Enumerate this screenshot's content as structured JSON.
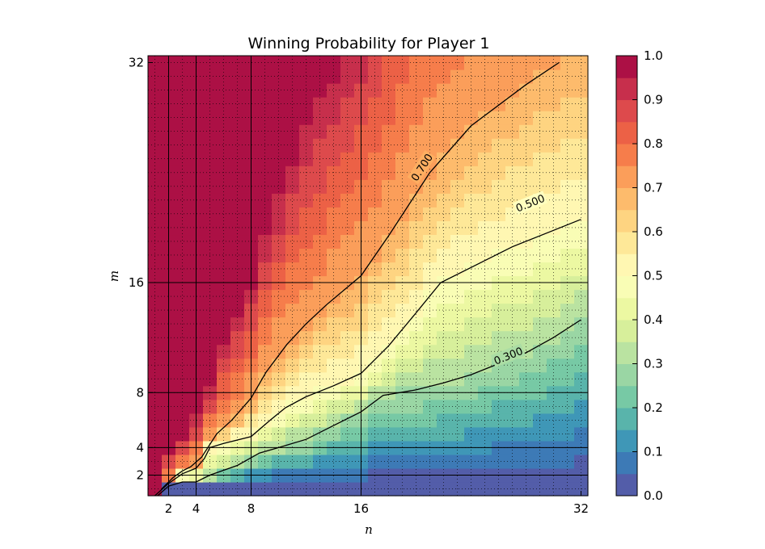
{
  "chart_data": {
    "type": "heatmap",
    "title": "Winning Probability for Player 1",
    "xlabel": "n",
    "ylabel": "m",
    "x_range": [
      1,
      32
    ],
    "y_range": [
      1,
      32
    ],
    "x_ticks": [
      {
        "value": 2,
        "label": "2"
      },
      {
        "value": 4,
        "label": "4"
      },
      {
        "value": 8,
        "label": "8"
      },
      {
        "value": 16,
        "label": "16"
      },
      {
        "value": 32,
        "label": "32"
      }
    ],
    "y_ticks": [
      {
        "value": 2,
        "label": "2"
      },
      {
        "value": 4,
        "label": "4"
      },
      {
        "value": 8,
        "label": "8"
      },
      {
        "value": 16,
        "label": "16"
      },
      {
        "value": 32,
        "label": "32"
      }
    ],
    "x_major_lines": [
      2,
      4,
      8,
      16
    ],
    "y_major_lines": [
      2,
      4,
      8,
      16
    ],
    "minor_grid": "dotted, every integer",
    "colormap": "Spectral",
    "colormap_colors": [
      "#5e4fa2",
      "#3288bd",
      "#66c2a5",
      "#abdda4",
      "#e6f598",
      "#ffffbf",
      "#fee08b",
      "#fdae61",
      "#f46d43",
      "#d53e4f",
      "#9e0142"
    ],
    "colorbar": {
      "range": [
        0.0,
        1.0
      ],
      "levels": 20,
      "ticks": [
        {
          "value": 0.0,
          "label": "0.0"
        },
        {
          "value": 0.1,
          "label": "0.1"
        },
        {
          "value": 0.2,
          "label": "0.2"
        },
        {
          "value": 0.3,
          "label": "0.3"
        },
        {
          "value": 0.4,
          "label": "0.4"
        },
        {
          "value": 0.5,
          "label": "0.5"
        },
        {
          "value": 0.6,
          "label": "0.6"
        },
        {
          "value": 0.7,
          "label": "0.7"
        },
        {
          "value": 0.8,
          "label": "0.8"
        },
        {
          "value": 0.9,
          "label": "0.9"
        },
        {
          "value": 1.0,
          "label": "1.0"
        }
      ]
    },
    "contours": [
      {
        "level": 0.7,
        "label": "0.700",
        "label_at": {
          "n": 20.4,
          "m": 24.4
        },
        "points": [
          [
            1.5,
            1.0
          ],
          [
            2.3,
            1.8
          ],
          [
            3.0,
            2.3
          ],
          [
            3.6,
            2.6
          ],
          [
            4.4,
            3.3
          ],
          [
            5.5,
            5.0
          ],
          [
            6.6,
            6.0
          ],
          [
            8.0,
            7.6
          ],
          [
            9.1,
            9.5
          ],
          [
            10.6,
            11.5
          ],
          [
            12.0,
            13.0
          ],
          [
            13.5,
            14.4
          ],
          [
            16.0,
            16.5
          ],
          [
            18.0,
            19.4
          ],
          [
            21.0,
            24.0
          ],
          [
            24.0,
            27.4
          ],
          [
            28.0,
            30.4
          ],
          [
            30.4,
            32.0
          ]
        ]
      },
      {
        "level": 0.5,
        "label": "0.500",
        "label_at": {
          "n": 28.3,
          "m": 21.8
        },
        "points": [
          [
            1.0,
            0.5
          ],
          [
            2.0,
            1.4
          ],
          [
            3.0,
            2.1
          ],
          [
            4.0,
            2.5
          ],
          [
            4.6,
            3.2
          ],
          [
            5.0,
            4.0
          ],
          [
            6.0,
            4.3
          ],
          [
            8.0,
            4.8
          ],
          [
            9.4,
            6.0
          ],
          [
            10.5,
            6.9
          ],
          [
            12.0,
            7.7
          ],
          [
            14.0,
            8.5
          ],
          [
            16.0,
            9.4
          ],
          [
            18.0,
            11.4
          ],
          [
            20.0,
            13.8
          ],
          [
            21.8,
            16.0
          ],
          [
            24.0,
            17.1
          ],
          [
            27.0,
            18.6
          ],
          [
            30.0,
            19.8
          ],
          [
            32.0,
            20.6
          ]
        ]
      },
      {
        "level": 0.3,
        "label": "0.300",
        "label_at": {
          "n": 26.7,
          "m": 10.7
        },
        "points": [
          [
            1.2,
            0.5
          ],
          [
            2.0,
            1.2
          ],
          [
            3.0,
            1.5
          ],
          [
            4.0,
            1.5
          ],
          [
            5.0,
            2.0
          ],
          [
            7.0,
            2.7
          ],
          [
            8.6,
            3.6
          ],
          [
            10.0,
            4.0
          ],
          [
            12.0,
            4.6
          ],
          [
            14.0,
            5.6
          ],
          [
            16.0,
            6.6
          ],
          [
            17.6,
            7.8
          ],
          [
            20.0,
            8.2
          ],
          [
            22.0,
            8.7
          ],
          [
            24.0,
            9.3
          ],
          [
            26.0,
            10.1
          ],
          [
            28.0,
            10.9
          ],
          [
            30.0,
            12.0
          ],
          [
            32.0,
            13.3
          ]
        ]
      }
    ],
    "heatmap_model": {
      "description": "approximate cell values z(n,m) for integer n,m in 1..32, interpolated between the 0.3, 0.5 and 0.7 contours",
      "high_value": 1.0,
      "low_value": 0.0
    },
    "grid": true,
    "legend": "colorbar-right"
  }
}
